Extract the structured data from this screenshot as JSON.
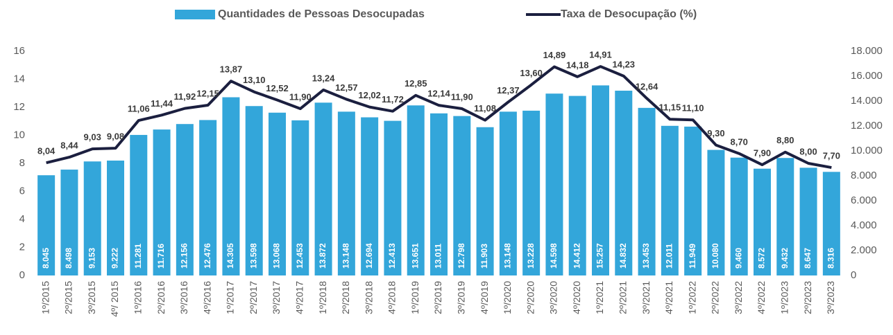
{
  "chart_data": {
    "type": "combo",
    "categories": [
      "1º/2015",
      "2º/2015",
      "3º/2015",
      "4º/ 2015",
      "1º/2016",
      "2º/2016",
      "3º/2016",
      "4º/2016",
      "1º/2017",
      "2º/2017",
      "3º/2017",
      "4º/2017",
      "1º/2018",
      "2º/2018",
      "3º/2018",
      "4º/2018",
      "1º/2019",
      "2º/2019",
      "3º/2019",
      "4º/2019",
      "1º/2020",
      "2º/2020",
      "3º/2020",
      "4º/2020",
      "1º/2021",
      "2º/2021",
      "3º/2021",
      "4º/2021",
      "1º/2022",
      "2º/2022",
      "3º/2022",
      "4º/2022",
      "1º/2023",
      "2º/2023",
      "3º/2023"
    ],
    "series": [
      {
        "name": "Quantidades de Pessoas Desocupadas",
        "type": "bar",
        "axis": "y2",
        "color": "#33a6da",
        "values": [
          8045,
          8498,
          9153,
          9222,
          11281,
          11716,
          12156,
          12476,
          14305,
          13598,
          13068,
          12453,
          13872,
          13148,
          12694,
          12413,
          13651,
          13011,
          12798,
          11903,
          13148,
          13228,
          14598,
          14412,
          15257,
          14832,
          13453,
          12011,
          11949,
          10080,
          9460,
          8572,
          9432,
          8647,
          8316
        ],
        "value_labels": [
          "8.045",
          "8.498",
          "9.153",
          "9.222",
          "11.281",
          "11.716",
          "12.156",
          "12.476",
          "14.305",
          "13.598",
          "13.068",
          "12.453",
          "13.872",
          "13.148",
          "12.694",
          "12.413",
          "13.651",
          "13.011",
          "12.798",
          "11.903",
          "13.148",
          "13.228",
          "14.598",
          "14.412",
          "15.257",
          "14.832",
          "13.453",
          "12.011",
          "11.949",
          "10.080",
          "9.460",
          "8.572",
          "9.432",
          "8.647",
          "8.316"
        ]
      },
      {
        "name": "Taxa de Desocupação (%)",
        "type": "line",
        "color": "#1b1f3f",
        "values": [
          8.04,
          8.44,
          9.03,
          9.08,
          11.06,
          11.44,
          11.92,
          12.15,
          13.87,
          13.1,
          12.52,
          11.9,
          13.24,
          12.57,
          12.02,
          11.72,
          12.85,
          12.14,
          11.9,
          11.08,
          12.37,
          13.6,
          14.89,
          14.18,
          14.91,
          14.23,
          12.64,
          11.15,
          11.1,
          9.3,
          8.7,
          7.9,
          8.8,
          8.0,
          7.7
        ],
        "value_labels": [
          "8,04",
          "8,44",
          "9,03",
          "9,08",
          "11,06",
          "11,44",
          "11,92",
          "12,15",
          "13,87",
          "13,10",
          "12,52",
          "11,90",
          "13,24",
          "12,57",
          "12,02",
          "11,72",
          "12,85",
          "12,14",
          "11,90",
          "11,08",
          "12,37",
          "13,60",
          "14,89",
          "14,18",
          "14,91",
          "14,23",
          "12,64",
          "11,15",
          "11,10",
          "9,30",
          "8,70",
          "7,90",
          "8,80",
          "8,00",
          "7,70"
        ]
      }
    ],
    "ylim": [
      0,
      16
    ],
    "yticks": [
      0,
      2,
      4,
      6,
      8,
      10,
      12,
      14,
      16
    ],
    "y2lim": [
      0,
      18000
    ],
    "y2ticks": [
      0,
      {
        "value": 2000,
        "label": "2.000"
      },
      {
        "value": 4000,
        "label": "4.000"
      },
      {
        "value": 6000,
        "label": "6.000"
      },
      {
        "value": 8000,
        "label": "8.000"
      },
      {
        "value": 10000,
        "label": "10.000"
      },
      {
        "value": 12000,
        "label": "12.000"
      },
      {
        "value": 14000,
        "label": "14.000"
      },
      {
        "value": 16000,
        "label": "16.000"
      },
      {
        "value": 18000,
        "label": "18.000"
      }
    ],
    "grid": false,
    "legend": "top"
  }
}
